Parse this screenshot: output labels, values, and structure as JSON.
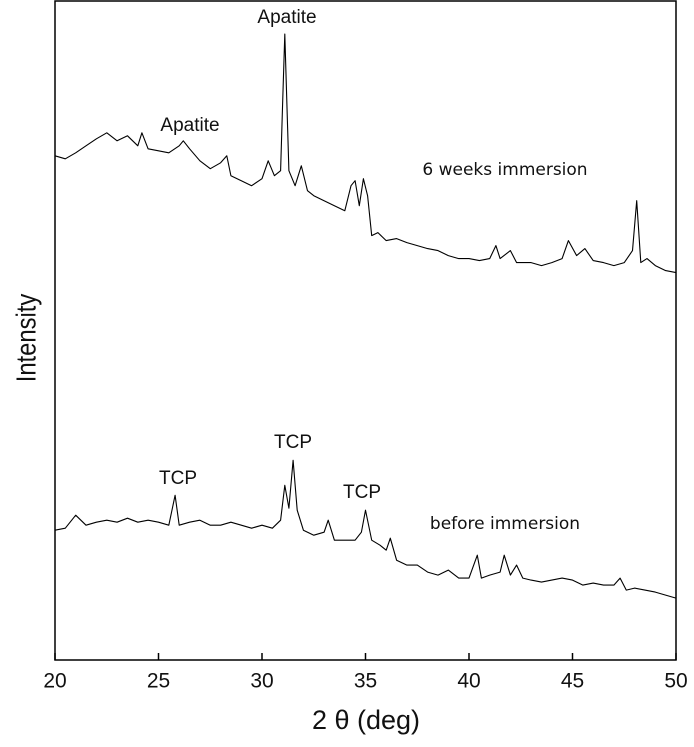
{
  "chart_data": {
    "type": "line",
    "xlabel": "2 θ (deg)",
    "ylabel": "Intensity",
    "xlim": [
      20,
      50
    ],
    "xticks": [
      20,
      25,
      30,
      35,
      40,
      45,
      50
    ],
    "ylim": [
      0,
      660
    ],
    "annotations": [
      "Apatite",
      "Apatite",
      "6 weeks immersion",
      "TCP",
      "TCP",
      "TCP",
      "before immersion"
    ],
    "series": [
      {
        "name": "6 weeks immersion",
        "color": "#000000",
        "x": [
          20,
          20.5,
          21,
          21.5,
          22,
          22.5,
          23,
          23.5,
          24,
          24.2,
          24.5,
          25,
          25.5,
          26,
          26.2,
          26.5,
          27,
          27.5,
          28,
          28.3,
          28.5,
          29,
          29.5,
          30,
          30.3,
          30.6,
          30.9,
          31.0,
          31.1,
          31.3,
          31.6,
          31.9,
          32.2,
          32.5,
          33,
          33.5,
          34,
          34.3,
          34.5,
          34.7,
          34.9,
          35.1,
          35.3,
          35.6,
          36,
          36.5,
          37,
          37.5,
          38,
          38.5,
          39,
          39.5,
          40,
          40.5,
          41,
          41.3,
          41.5,
          42,
          42.3,
          43,
          43.5,
          44,
          44.5,
          44.8,
          45.2,
          45.6,
          46,
          46.5,
          47,
          47.5,
          47.9,
          48.1,
          48.3,
          48.6,
          49,
          49.5,
          50
        ],
        "values": [
          505,
          502,
          508,
          515,
          522,
          528,
          520,
          525,
          515,
          528,
          512,
          510,
          508,
          515,
          520,
          512,
          500,
          492,
          498,
          505,
          485,
          480,
          475,
          482,
          500,
          485,
          490,
          560,
          627,
          490,
          475,
          495,
          470,
          465,
          460,
          455,
          450,
          475,
          480,
          455,
          482,
          465,
          425,
          428,
          420,
          422,
          418,
          415,
          412,
          410,
          405,
          402,
          402,
          400,
          402,
          415,
          402,
          410,
          398,
          398,
          395,
          398,
          402,
          420,
          405,
          412,
          400,
          398,
          395,
          398,
          410,
          460,
          398,
          402,
          395,
          390,
          388
        ]
      },
      {
        "name": "before immersion",
        "color": "#000000",
        "x": [
          20,
          20.5,
          21,
          21.5,
          22,
          22.5,
          23,
          23.5,
          24,
          24.5,
          25,
          25.5,
          25.8,
          26,
          26.5,
          27,
          27.5,
          28,
          28.5,
          29,
          29.5,
          30,
          30.5,
          30.9,
          31.1,
          31.3,
          31.5,
          31.7,
          32,
          32.5,
          33,
          33.2,
          33.5,
          34,
          34.5,
          34.8,
          35.0,
          35.3,
          35.7,
          36,
          36.2,
          36.5,
          37,
          37.5,
          38,
          38.5,
          39,
          39.5,
          40,
          40.4,
          40.6,
          41,
          41.5,
          41.7,
          42,
          42.3,
          42.6,
          43,
          43.5,
          44,
          44.5,
          45,
          45.5,
          46,
          46.5,
          47,
          47.3,
          47.6,
          48,
          48.5,
          49,
          49.5,
          50
        ],
        "values": [
          130,
          132,
          145,
          135,
          138,
          140,
          138,
          142,
          138,
          140,
          138,
          135,
          165,
          135,
          138,
          140,
          135,
          135,
          138,
          135,
          132,
          135,
          132,
          140,
          175,
          152,
          200,
          150,
          130,
          125,
          128,
          140,
          120,
          120,
          120,
          128,
          150,
          120,
          115,
          110,
          122,
          100,
          95,
          95,
          88,
          85,
          90,
          82,
          82,
          105,
          82,
          85,
          88,
          105,
          85,
          95,
          82,
          80,
          78,
          80,
          82,
          80,
          75,
          77,
          75,
          75,
          82,
          70,
          72,
          70,
          68,
          65,
          62
        ]
      }
    ]
  }
}
